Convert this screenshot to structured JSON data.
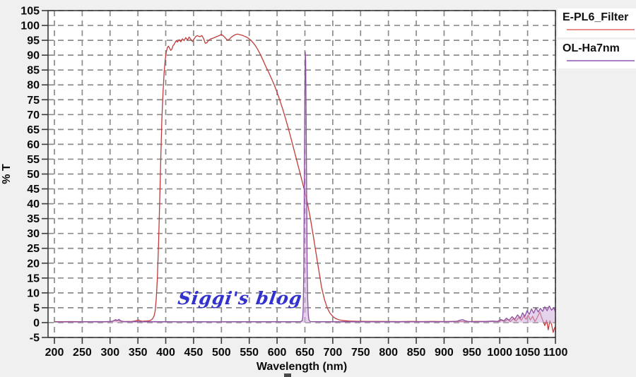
{
  "page": {
    "background": "#f0f0f0"
  },
  "watermark": {
    "text": "Siggi's blog",
    "color": "#3232cd"
  },
  "legend": {
    "items": [
      {
        "label": "E-PL6_Filter",
        "line_color": "#e9908d"
      },
      {
        "label": "OL-Ha7nm",
        "line_color": "#a97fc5"
      }
    ]
  },
  "chart_data": {
    "type": "line",
    "title": "",
    "xlabel": "Wavelength (nm)",
    "ylabel": "% T",
    "xlim": [
      188.6,
      1100
    ],
    "ylim": [
      -5,
      105
    ],
    "grid": true,
    "legend_position": "top-right-outside",
    "x_ticks": [
      200,
      250,
      300,
      350,
      400,
      450,
      500,
      550,
      600,
      650,
      700,
      750,
      800,
      850,
      900,
      950,
      1000,
      1050,
      1100
    ],
    "y_ticks": [
      -5,
      0,
      5,
      10,
      15,
      20,
      25,
      30,
      35,
      40,
      45,
      50,
      55,
      60,
      65,
      70,
      75,
      80,
      85,
      90,
      95,
      100,
      105
    ],
    "colors": {
      "grid": "#8c8c8c",
      "frame": "#3a3a3a",
      "tick_label": "#0a0a0a",
      "plot_bg": "#ffffff"
    },
    "series": [
      {
        "name": "E-PL6_Filter",
        "color": "#c13b3b",
        "points": [
          [
            200,
            0.3
          ],
          [
            215,
            0.3
          ],
          [
            230,
            0.35
          ],
          [
            245,
            0.3
          ],
          [
            260,
            0.3
          ],
          [
            275,
            0.35
          ],
          [
            290,
            0.3
          ],
          [
            300,
            0.3
          ],
          [
            305,
            0.45
          ],
          [
            308,
            0.7
          ],
          [
            311,
            0.5
          ],
          [
            314,
            0.8
          ],
          [
            317,
            0.5
          ],
          [
            320,
            0.4
          ],
          [
            326,
            0.3
          ],
          [
            332,
            0.4
          ],
          [
            338,
            0.35
          ],
          [
            344,
            0.5
          ],
          [
            348,
            0.7
          ],
          [
            351,
            0.9
          ],
          [
            354,
            0.6
          ],
          [
            358,
            0.4
          ],
          [
            362,
            0.5
          ],
          [
            366,
            0.5
          ],
          [
            370,
            0.6
          ],
          [
            373,
            0.8
          ],
          [
            376,
            1.2
          ],
          [
            379,
            2.2
          ],
          [
            381,
            4
          ],
          [
            383,
            8
          ],
          [
            385,
            15
          ],
          [
            387,
            26
          ],
          [
            389,
            40
          ],
          [
            391,
            55
          ],
          [
            393,
            68
          ],
          [
            395,
            77
          ],
          [
            397,
            84
          ],
          [
            399,
            88.5
          ],
          [
            401,
            91
          ],
          [
            403,
            92.6
          ],
          [
            405,
            93
          ],
          [
            407,
            92.3
          ],
          [
            409,
            91.6
          ],
          [
            411,
            92
          ],
          [
            413,
            93.2
          ],
          [
            415,
            93.6
          ],
          [
            417,
            94.3
          ],
          [
            419,
            94.9
          ],
          [
            421,
            94.4
          ],
          [
            424,
            95.2
          ],
          [
            427,
            94.5
          ],
          [
            430,
            95.5
          ],
          [
            433,
            94.9
          ],
          [
            436,
            95.9
          ],
          [
            439,
            95.1
          ],
          [
            442,
            96.1
          ],
          [
            445,
            95.3
          ],
          [
            448,
            94.6
          ],
          [
            451,
            95.5
          ],
          [
            454,
            96.3
          ],
          [
            457,
            96.6
          ],
          [
            461,
            96.2
          ],
          [
            465,
            96.6
          ],
          [
            468,
            95.6
          ],
          [
            471,
            94
          ],
          [
            474,
            94.2
          ],
          [
            477,
            95
          ],
          [
            481,
            95.5
          ],
          [
            486,
            95.8
          ],
          [
            491,
            96.2
          ],
          [
            496,
            96.6
          ],
          [
            500,
            97
          ],
          [
            504,
            96.4
          ],
          [
            508,
            95.6
          ],
          [
            511,
            95.1
          ],
          [
            514,
            95.3
          ],
          [
            517,
            95.9
          ],
          [
            521,
            96.5
          ],
          [
            525,
            96.9
          ],
          [
            529,
            97.1
          ],
          [
            533,
            96.9
          ],
          [
            537,
            96.7
          ],
          [
            541,
            96.4
          ],
          [
            545,
            96.1
          ],
          [
            549,
            95.6
          ],
          [
            553,
            95
          ],
          [
            557,
            94.2
          ],
          [
            561,
            93.2
          ],
          [
            565,
            92
          ],
          [
            570,
            90.2
          ],
          [
            575,
            88.2
          ],
          [
            580,
            86.1
          ],
          [
            585,
            84.2
          ],
          [
            590,
            82.1
          ],
          [
            595,
            79.9
          ],
          [
            600,
            77.5
          ],
          [
            605,
            74.8
          ],
          [
            610,
            71.9
          ],
          [
            615,
            68.8
          ],
          [
            620,
            65.5
          ],
          [
            625,
            62
          ],
          [
            630,
            58.4
          ],
          [
            635,
            54.8
          ],
          [
            640,
            51.2
          ],
          [
            645,
            47.5
          ],
          [
            650,
            43.8
          ],
          [
            655,
            39.8
          ],
          [
            660,
            34.8
          ],
          [
            665,
            29.2
          ],
          [
            670,
            23.4
          ],
          [
            675,
            17.5
          ],
          [
            680,
            11.8
          ],
          [
            685,
            7.8
          ],
          [
            690,
            5
          ],
          [
            695,
            3.2
          ],
          [
            700,
            2.1
          ],
          [
            705,
            1.4
          ],
          [
            710,
            1
          ],
          [
            715,
            0.8
          ],
          [
            720,
            0.65
          ],
          [
            730,
            0.5
          ],
          [
            745,
            0.45
          ],
          [
            760,
            0.4
          ],
          [
            780,
            0.4
          ],
          [
            800,
            0.38
          ],
          [
            820,
            0.35
          ],
          [
            840,
            0.4
          ],
          [
            860,
            0.35
          ],
          [
            880,
            0.4
          ],
          [
            900,
            0.35
          ],
          [
            920,
            0.4
          ],
          [
            940,
            0.35
          ],
          [
            960,
            0.4
          ],
          [
            980,
            0.35
          ],
          [
            992,
            0.45
          ],
          [
            998,
            0.3
          ],
          [
            1004,
            0.9
          ],
          [
            1009,
            0.4
          ],
          [
            1014,
            1.1
          ],
          [
            1019,
            0.3
          ],
          [
            1024,
            1.3
          ],
          [
            1029,
            0.5
          ],
          [
            1034,
            1.7
          ],
          [
            1039,
            0.8
          ],
          [
            1043,
            2.2
          ],
          [
            1047,
            1.1
          ],
          [
            1051,
            2.5
          ],
          [
            1055,
            0.9
          ],
          [
            1059,
            2.1
          ],
          [
            1063,
            0.4
          ],
          [
            1066,
            1.2
          ],
          [
            1069,
            2.4
          ],
          [
            1072,
            3.6
          ],
          [
            1075,
            1.8
          ],
          [
            1078,
            0.4
          ],
          [
            1081,
            -1
          ],
          [
            1084,
            0.8
          ],
          [
            1087,
            -2.4
          ],
          [
            1090,
            0.6
          ],
          [
            1093,
            -0.6
          ],
          [
            1096,
            -3.3
          ],
          [
            1098,
            -2
          ],
          [
            1100,
            -1.2
          ]
        ]
      },
      {
        "name": "OL-Ha7nm",
        "color": "#8e4fa0",
        "fill": "#cfaede",
        "fill_opacity": 0.55,
        "points": [
          [
            200,
            0.25
          ],
          [
            230,
            0.25
          ],
          [
            260,
            0.3
          ],
          [
            290,
            0.3
          ],
          [
            303,
            0.4
          ],
          [
            307,
            0.7
          ],
          [
            310,
            1
          ],
          [
            313,
            0.7
          ],
          [
            316,
            1.1
          ],
          [
            319,
            0.6
          ],
          [
            323,
            0.4
          ],
          [
            330,
            0.3
          ],
          [
            345,
            0.35
          ],
          [
            360,
            0.3
          ],
          [
            380,
            0.3
          ],
          [
            400,
            0.3
          ],
          [
            430,
            0.28
          ],
          [
            460,
            0.3
          ],
          [
            490,
            0.28
          ],
          [
            520,
            0.3
          ],
          [
            550,
            0.3
          ],
          [
            580,
            0.3
          ],
          [
            610,
            0.3
          ],
          [
            635,
            0.3
          ],
          [
            642,
            0.35
          ],
          [
            645,
            0.6
          ],
          [
            646,
            1.5
          ],
          [
            647,
            5
          ],
          [
            648,
            18
          ],
          [
            649,
            50
          ],
          [
            650,
            80
          ],
          [
            650.7,
            91
          ],
          [
            651.4,
            88
          ],
          [
            652,
            73
          ],
          [
            653,
            45
          ],
          [
            654,
            20
          ],
          [
            655,
            8
          ],
          [
            656,
            3
          ],
          [
            657,
            1.2
          ],
          [
            658,
            0.6
          ],
          [
            660,
            0.35
          ],
          [
            680,
            0.3
          ],
          [
            710,
            0.3
          ],
          [
            740,
            0.3
          ],
          [
            770,
            0.3
          ],
          [
            800,
            0.3
          ],
          [
            830,
            0.3
          ],
          [
            860,
            0.3
          ],
          [
            890,
            0.3
          ],
          [
            910,
            0.35
          ],
          [
            922,
            0.4
          ],
          [
            928,
            0.8
          ],
          [
            933,
            1
          ],
          [
            938,
            0.6
          ],
          [
            944,
            0.35
          ],
          [
            960,
            0.3
          ],
          [
            975,
            0.4
          ],
          [
            988,
            0.5
          ],
          [
            996,
            0.4
          ],
          [
            1002,
            1
          ],
          [
            1007,
            0.5
          ],
          [
            1012,
            1.5
          ],
          [
            1017,
            0.8
          ],
          [
            1022,
            2
          ],
          [
            1027,
            1.1
          ],
          [
            1032,
            2.6
          ],
          [
            1037,
            1.5
          ],
          [
            1041,
            3.3
          ],
          [
            1045,
            2.1
          ],
          [
            1049,
            4
          ],
          [
            1053,
            2.8
          ],
          [
            1057,
            4.6
          ],
          [
            1061,
            3.2
          ],
          [
            1065,
            5
          ],
          [
            1069,
            3.6
          ],
          [
            1073,
            4.8
          ],
          [
            1077,
            3.8
          ],
          [
            1081,
            5.3
          ],
          [
            1085,
            4
          ],
          [
            1089,
            5.6
          ],
          [
            1093,
            4.2
          ],
          [
            1097,
            5
          ],
          [
            1100,
            3.6
          ]
        ]
      }
    ]
  }
}
